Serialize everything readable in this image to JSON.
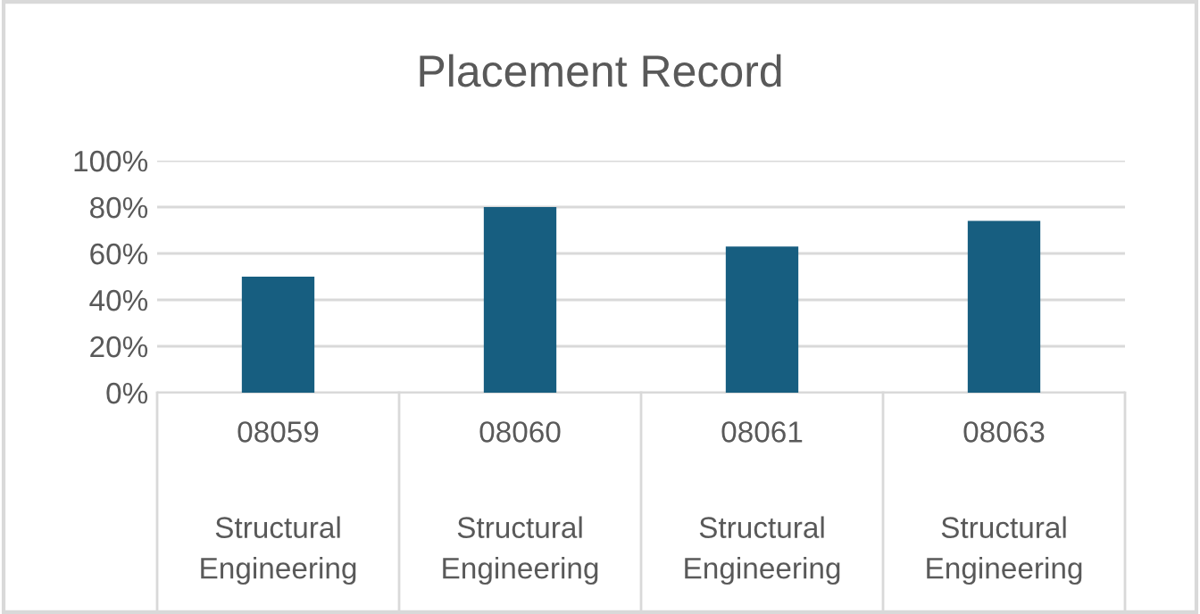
{
  "chart_data": {
    "type": "bar",
    "title": "Placement Record",
    "categories": [
      "08059\nStructural Engineering",
      "08060\nStructural Engineering",
      "08061\nStructural Engineering",
      "08063\nStructural Engineering"
    ],
    "values": [
      50,
      80,
      63,
      74
    ],
    "color": "#175e80",
    "ylim": [
      0,
      100
    ],
    "yticks": [
      {
        "value": 0,
        "label": "0%"
      },
      {
        "value": 20,
        "label": "20%"
      },
      {
        "value": 40,
        "label": "40%"
      },
      {
        "value": 60,
        "label": "60%"
      },
      {
        "value": 80,
        "label": "80%"
      },
      {
        "value": 100,
        "label": "100%"
      }
    ],
    "grid": "y",
    "legend": false
  }
}
